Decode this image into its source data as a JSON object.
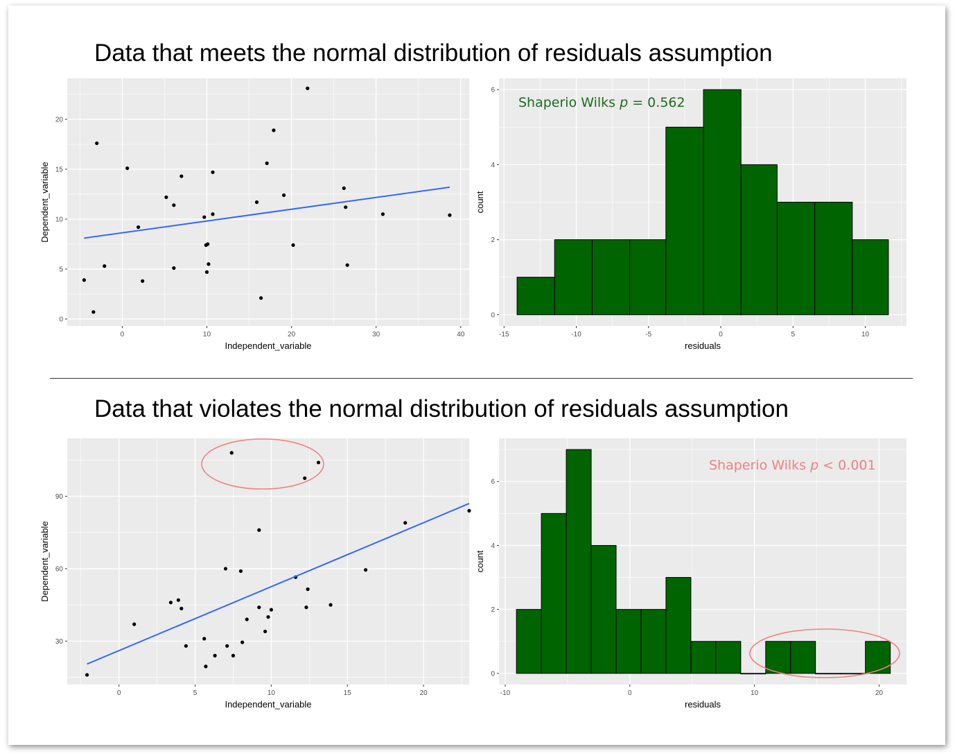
{
  "headings": {
    "top": "Data that meets the normal distribution of residuals assumption",
    "bottom": "Data that violates the normal distribution of residuals assumption"
  },
  "colors": {
    "panel_bg": "#ebebeb",
    "grid": "#ffffff",
    "point": "#000000",
    "fit_line": "#3366ff",
    "bar_fill": "#006400",
    "bar_stroke": "#000000",
    "annotation_top": "#1e6b1e",
    "annotation_bottom": "#f08080",
    "highlight_ellipse": "#f08080"
  },
  "chart_data": [
    {
      "id": "top-scatter",
      "type": "scatter",
      "xlabel": "Independent_variable",
      "ylabel": "Dependent_variable",
      "xlim": [
        -6.5,
        41
      ],
      "ylim": [
        -0.7,
        24.1
      ],
      "xticks": [
        0,
        10,
        20,
        30,
        40
      ],
      "yticks": [
        0,
        5,
        10,
        15,
        20
      ],
      "points": [
        [
          -4.5,
          3.9
        ],
        [
          -3.4,
          0.7
        ],
        [
          -3.0,
          17.6
        ],
        [
          -2.1,
          5.3
        ],
        [
          0.6,
          15.1
        ],
        [
          1.9,
          9.2
        ],
        [
          2.4,
          3.8
        ],
        [
          5.2,
          12.2
        ],
        [
          6.1,
          11.4
        ],
        [
          6.1,
          5.1
        ],
        [
          7.0,
          14.3
        ],
        [
          9.7,
          10.2
        ],
        [
          9.9,
          7.4
        ],
        [
          10.0,
          4.7
        ],
        [
          10.1,
          7.5
        ],
        [
          10.2,
          5.5
        ],
        [
          10.7,
          14.7
        ],
        [
          10.7,
          10.5
        ],
        [
          15.9,
          11.7
        ],
        [
          16.4,
          2.1
        ],
        [
          17.1,
          15.6
        ],
        [
          17.9,
          18.9
        ],
        [
          19.1,
          12.4
        ],
        [
          20.2,
          7.4
        ],
        [
          21.9,
          23.1
        ],
        [
          26.2,
          13.1
        ],
        [
          26.4,
          11.2
        ],
        [
          26.6,
          5.4
        ],
        [
          30.8,
          10.5
        ],
        [
          38.7,
          10.4
        ]
      ],
      "fit": {
        "x": [
          -4.5,
          38.7
        ],
        "y": [
          8.1,
          13.2
        ]
      }
    },
    {
      "id": "top-histogram",
      "type": "bar",
      "xlabel": "residuals",
      "ylabel": "count",
      "xlim": [
        -15.35,
        12.85
      ],
      "ylim": [
        -0.3,
        6.3
      ],
      "xticks": [
        -15,
        -10,
        -5,
        0,
        5,
        10
      ],
      "yticks": [
        0,
        2,
        4,
        6
      ],
      "bin_edges": [
        -14.1,
        -11.5,
        -8.9,
        -6.3,
        -3.8,
        -1.2,
        1.4,
        3.9,
        6.5,
        9.1,
        11.6
      ],
      "values": [
        1,
        2,
        2,
        2,
        5,
        6,
        4,
        3,
        3,
        2
      ],
      "annotation": {
        "pre": "Shaperio Wilks ",
        "italic": "p",
        "post": " = 0.562"
      }
    },
    {
      "id": "bottom-scatter",
      "type": "scatter",
      "xlabel": "Independent_variable",
      "ylabel": "Dependent_variable",
      "xlim": [
        -3.4,
        23.0
      ],
      "ylim": [
        12.0,
        114.0
      ],
      "xticks": [
        0,
        5,
        10,
        15,
        20
      ],
      "yticks": [
        30,
        60,
        90
      ],
      "points": [
        [
          -2.1,
          16.0
        ],
        [
          1.0,
          37.0
        ],
        [
          3.4,
          46.0
        ],
        [
          3.9,
          47.0
        ],
        [
          4.1,
          43.5
        ],
        [
          4.4,
          28.0
        ],
        [
          5.6,
          31.0
        ],
        [
          5.7,
          19.5
        ],
        [
          6.3,
          24.0
        ],
        [
          7.0,
          60.0
        ],
        [
          7.1,
          28.0
        ],
        [
          7.5,
          24.0
        ],
        [
          7.4,
          108.0
        ],
        [
          8.0,
          59.0
        ],
        [
          8.1,
          29.5
        ],
        [
          8.4,
          39.0
        ],
        [
          9.2,
          44.0
        ],
        [
          9.2,
          76.0
        ],
        [
          9.6,
          34.0
        ],
        [
          9.8,
          40.0
        ],
        [
          10.0,
          43.0
        ],
        [
          11.6,
          56.5
        ],
        [
          12.2,
          97.5
        ],
        [
          12.3,
          44.0
        ],
        [
          12.4,
          51.5
        ],
        [
          13.1,
          104.0
        ],
        [
          13.9,
          45.0
        ],
        [
          16.2,
          59.5
        ],
        [
          18.8,
          79.0
        ],
        [
          23.0,
          84.0
        ]
      ],
      "fit": {
        "x": [
          -2.1,
          23.0
        ],
        "y": [
          20.5,
          87.0
        ]
      }
    },
    {
      "id": "bottom-histogram",
      "type": "bar",
      "xlabel": "residuals",
      "ylabel": "count",
      "xlim": [
        -10.5,
        22.2
      ],
      "ylim": [
        -0.35,
        7.35
      ],
      "xticks": [
        -10,
        0,
        10,
        20
      ],
      "yticks": [
        0,
        2,
        4,
        6
      ],
      "bin_edges": [
        -9.1,
        -7.1,
        -5.1,
        -3.1,
        -1.1,
        0.9,
        2.9,
        4.9,
        6.9,
        8.9,
        10.9,
        12.9,
        14.9,
        16.9,
        18.9,
        20.9
      ],
      "values": [
        2,
        5,
        7,
        4,
        2,
        2,
        3,
        1,
        1,
        0,
        1,
        1,
        0,
        0,
        1
      ],
      "annotation": {
        "pre": "Shaperio Wilks ",
        "italic": "p",
        "post": " < 0.001"
      }
    }
  ]
}
